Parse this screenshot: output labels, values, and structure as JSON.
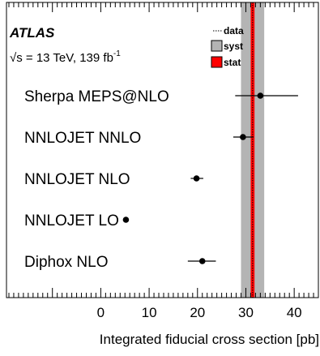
{
  "chart_data": {
    "type": "scatter",
    "experiment": "ATLAS",
    "energy_label": "√s = 13 TeV, 139 fb",
    "energy_sup": "-1",
    "xlabel": "Integrated fiducial cross section [pb]",
    "xlim": [
      -19.5,
      45
    ],
    "xticks": [
      0,
      10,
      20,
      30,
      40
    ],
    "grid": false,
    "legend_position": "top-right",
    "legend": [
      {
        "label": "data",
        "style": "dotted-line"
      },
      {
        "label": "syst",
        "style": "grey-box"
      },
      {
        "label": "stat",
        "style": "red-box"
      }
    ],
    "measurement": {
      "value": 31.4,
      "stat": [
        31.0,
        31.8
      ],
      "syst": [
        29.0,
        33.8
      ]
    },
    "predictions": [
      {
        "label": "Sherpa MEPS@NLO",
        "value": 33.0,
        "err_low": 27.8,
        "err_high": 40.8
      },
      {
        "label": "NNLOJET NNLO",
        "value": 29.4,
        "err_low": 27.4,
        "err_high": 31.6
      },
      {
        "label": "NNLOJET NLO",
        "value": 19.8,
        "err_low": 18.6,
        "err_high": 21.2
      },
      {
        "label": "NNLOJET LO",
        "value": 5.2,
        "err_low": 5.2,
        "err_high": 5.2
      },
      {
        "label": "Diphox NLO",
        "value": 21.0,
        "err_low": 18.0,
        "err_high": 23.8
      }
    ],
    "colors": {
      "syst": "#b4b4b4",
      "stat": "#ff0000",
      "data_line": "#000000",
      "markers": "#000000"
    }
  }
}
